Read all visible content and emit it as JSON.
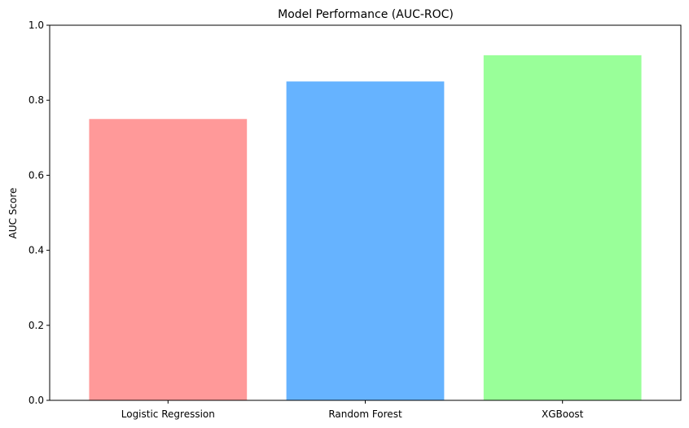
{
  "chart_data": {
    "type": "bar",
    "title": "Model Performance (AUC-ROC)",
    "xlabel": "",
    "ylabel": "AUC Score",
    "categories": [
      "Logistic Regression",
      "Random Forest",
      "XGBoost"
    ],
    "values": [
      0.75,
      0.85,
      0.92
    ],
    "colors": [
      "#ff9999",
      "#66b3ff",
      "#99ff99"
    ],
    "ylim": [
      0,
      1.0
    ],
    "yticks": [
      "0.0",
      "0.2",
      "0.4",
      "0.6",
      "0.8",
      "1.0"
    ],
    "grid": false,
    "legend": "none"
  }
}
